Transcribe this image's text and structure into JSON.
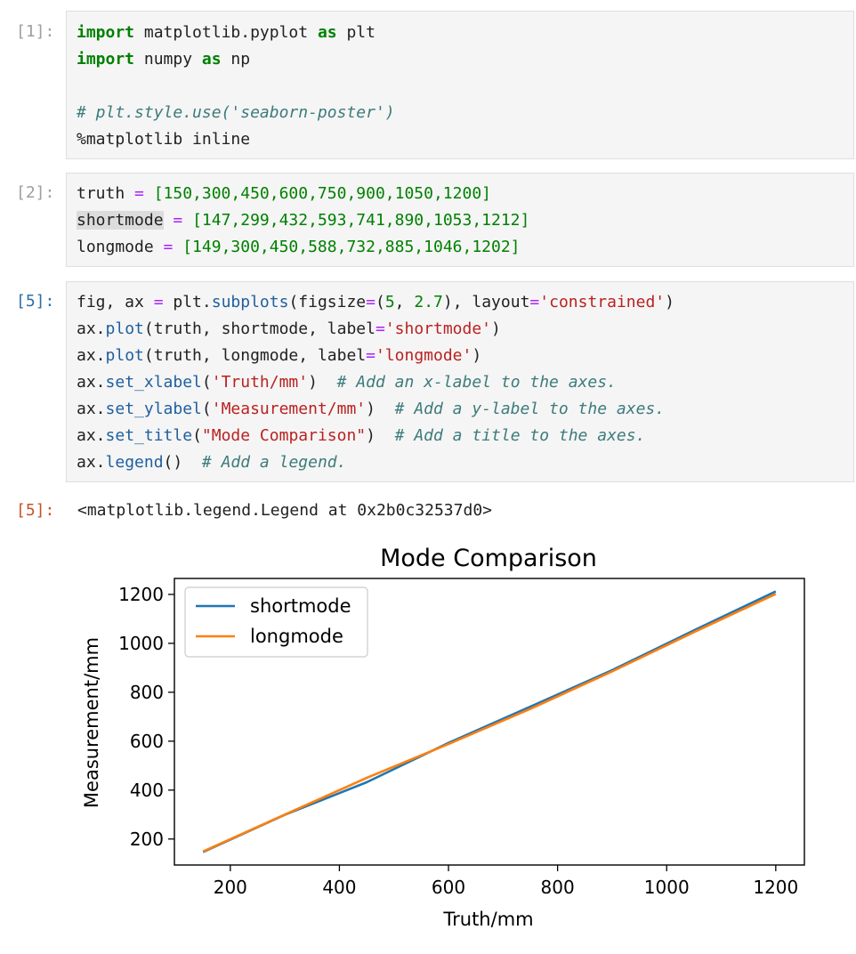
{
  "cells": {
    "c1": {
      "prompt": "[1]:"
    },
    "c2": {
      "prompt": "[2]:"
    },
    "c3": {
      "prompt": "[5]:"
    },
    "out": {
      "prompt": "[5]:",
      "text": "<matplotlib.legend.Legend at 0x2b0c32537d0>"
    }
  },
  "code": {
    "l1": {
      "kw1": "import",
      "mod": " matplotlib.pyplot ",
      "kw2": "as",
      "alias": " plt"
    },
    "l2": {
      "kw1": "import",
      "mod": " numpy ",
      "kw2": "as",
      "alias": " np"
    },
    "l4": {
      "comment": "# plt.style.use('seaborn-poster')"
    },
    "l5": {
      "text": "%matplotlib inline"
    },
    "c2l1": {
      "var": "truth",
      "eq": " = ",
      "vals": "[150,300,450,600,750,900,1050,1200]"
    },
    "c2l2": {
      "var": "shortmode",
      "eq": " = ",
      "vals": "[147,299,432,593,741,890,1053,1212]"
    },
    "c2l3": {
      "var": "longmode",
      "eq": " = ",
      "vals": "[149,300,450,588,732,885,1046,1202]"
    },
    "c3l1": {
      "a": "fig, ax ",
      "b": "=",
      "c": " plt.",
      "d": "subplots",
      "e": "(figsize",
      "f": "=",
      "g": "(",
      "h": "5",
      "i": ", ",
      "j": "2.7",
      "k": "), layout",
      "l": "=",
      "m": "'constrained'",
      "n": ")"
    },
    "c3l2": {
      "a": "ax.",
      "b": "plot",
      "c": "(truth, shortmode, label",
      "d": "=",
      "e": "'shortmode'",
      "f": ")"
    },
    "c3l3": {
      "a": "ax.",
      "b": "plot",
      "c": "(truth, longmode, label",
      "d": "=",
      "e": "'longmode'",
      "f": ")"
    },
    "c3l4": {
      "a": "ax.",
      "b": "set_xlabel",
      "c": "(",
      "d": "'Truth/mm'",
      "e": ")  ",
      "f": "# Add an x-label to the axes."
    },
    "c3l5": {
      "a": "ax.",
      "b": "set_ylabel",
      "c": "(",
      "d": "'Measurement/mm'",
      "e": ")  ",
      "f": "# Add a y-label to the axes."
    },
    "c3l6": {
      "a": "ax.",
      "b": "set_title",
      "c": "(",
      "d": "\"Mode Comparison\"",
      "e": ")  ",
      "f": "# Add a title to the axes."
    },
    "c3l7": {
      "a": "ax.",
      "b": "legend",
      "c": "()  ",
      "d": "# Add a legend."
    }
  },
  "colors": {
    "shortmode": "#1f77b4",
    "longmode": "#ff7f0e"
  },
  "chart_data": {
    "type": "line",
    "title": "Mode Comparison",
    "xlabel": "Truth/mm",
    "ylabel": "Measurement/mm",
    "x": [
      150,
      300,
      450,
      600,
      750,
      900,
      1050,
      1200
    ],
    "series": [
      {
        "name": "shortmode",
        "values": [
          147,
          299,
          432,
          593,
          741,
          890,
          1053,
          1212
        ]
      },
      {
        "name": "longmode",
        "values": [
          149,
          300,
          450,
          588,
          732,
          885,
          1046,
          1202
        ]
      }
    ],
    "xticks": [
      "200",
      "400",
      "600",
      "800",
      "1000",
      "1200"
    ],
    "yticks": [
      "200",
      "400",
      "600",
      "800",
      "1000",
      "1200"
    ],
    "xlim": [
      97.5,
      1252.5
    ],
    "ylim": [
      93.75,
      1265.25
    ],
    "grid": false,
    "legend": "upper left"
  }
}
